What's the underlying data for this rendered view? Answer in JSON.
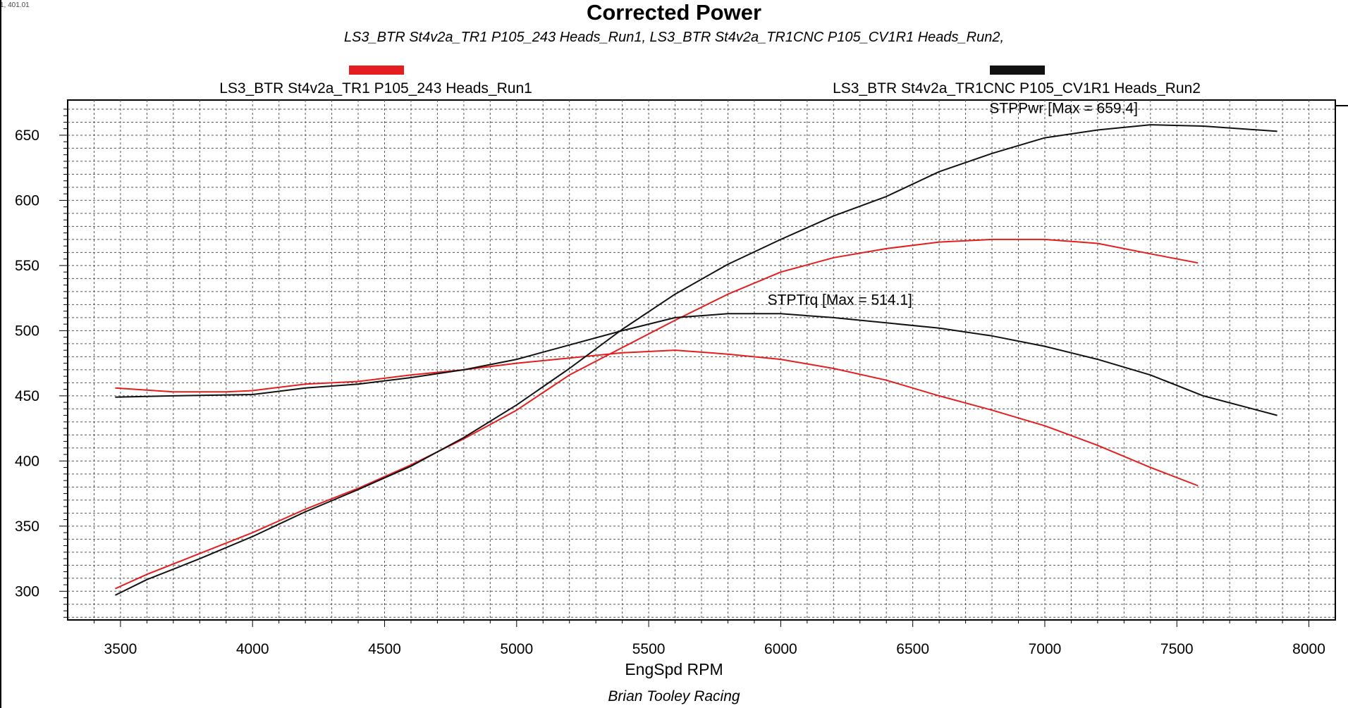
{
  "corner_readout": "1, 401.01",
  "chart_data": {
    "type": "line",
    "title": "Corrected Power",
    "subtitle": "LS3_BTR St4v2a_TR1 P105_243 Heads_Run1, LS3_BTR St4v2a_TR1CNC P105_CV1R1 Heads_Run2,",
    "xlabel": "EngSpd RPM",
    "ylabel": "",
    "footer": "Brian Tooley Racing",
    "xlim": [
      3300,
      8100
    ],
    "ylim": [
      278,
      677
    ],
    "x_ticks": [
      3500,
      4000,
      4500,
      5000,
      5500,
      6000,
      6500,
      7000,
      7500,
      8000
    ],
    "y_ticks": [
      300,
      350,
      400,
      450,
      500,
      550,
      600,
      650
    ],
    "grid": true,
    "legend": [
      {
        "name": "LS3_BTR St4v2a_TR1 P105_243 Heads_Run1",
        "color": "#e41e1e"
      },
      {
        "name": "LS3_BTR St4v2a_TR1CNC P105_CV1R1 Heads_Run2",
        "color": "#111111"
      }
    ],
    "annotations": [
      {
        "text": "STPPwr [Max = 659.4]",
        "x": 6790,
        "y": 667
      },
      {
        "text": "STPTrq [Max = 514.1]",
        "x": 5950,
        "y": 520
      }
    ],
    "series": [
      {
        "name": "Run1 STPPwr",
        "color": "#e41e1e",
        "x": [
          3480,
          3600,
          3800,
          4000,
          4200,
          4400,
          4600,
          4800,
          5000,
          5200,
          5400,
          5600,
          5800,
          6000,
          6200,
          6400,
          6600,
          6800,
          7000,
          7200,
          7400,
          7580
        ],
        "y": [
          302,
          313,
          329,
          345,
          363,
          379,
          397,
          417,
          439,
          466,
          487,
          508,
          528,
          545,
          556,
          563,
          568,
          570,
          570,
          567,
          559,
          552
        ]
      },
      {
        "name": "Run1 STPTrq",
        "color": "#e41e1e",
        "x": [
          3480,
          3700,
          3900,
          4000,
          4200,
          4400,
          4600,
          4800,
          5000,
          5200,
          5400,
          5600,
          5800,
          6000,
          6200,
          6400,
          6600,
          6800,
          7000,
          7200,
          7400,
          7580
        ],
        "y": [
          456,
          453,
          453,
          454,
          459,
          461,
          466,
          470,
          475,
          479,
          483,
          485,
          482,
          478,
          471,
          462,
          450,
          439,
          427,
          412,
          395,
          381
        ]
      },
      {
        "name": "Run2 STPPwr",
        "color": "#111111",
        "x": [
          3480,
          3600,
          3800,
          4000,
          4200,
          4400,
          4600,
          4800,
          5000,
          5200,
          5400,
          5600,
          5800,
          6000,
          6200,
          6400,
          6600,
          6800,
          7000,
          7200,
          7400,
          7600,
          7880
        ],
        "y": [
          297,
          309,
          325,
          342,
          361,
          378,
          396,
          418,
          443,
          471,
          501,
          528,
          551,
          570,
          588,
          603,
          622,
          636,
          648,
          654,
          658,
          657,
          653
        ]
      },
      {
        "name": "Run2 STPTrq",
        "color": "#111111",
        "x": [
          3480,
          3700,
          4000,
          4200,
          4400,
          4600,
          4800,
          5000,
          5200,
          5400,
          5600,
          5800,
          6000,
          6200,
          6400,
          6600,
          6800,
          7000,
          7200,
          7400,
          7600,
          7880
        ],
        "y": [
          449,
          450,
          451,
          456,
          459,
          464,
          470,
          478,
          489,
          500,
          510,
          513,
          513,
          510,
          506,
          502,
          496,
          488,
          478,
          466,
          450,
          435
        ]
      }
    ]
  }
}
